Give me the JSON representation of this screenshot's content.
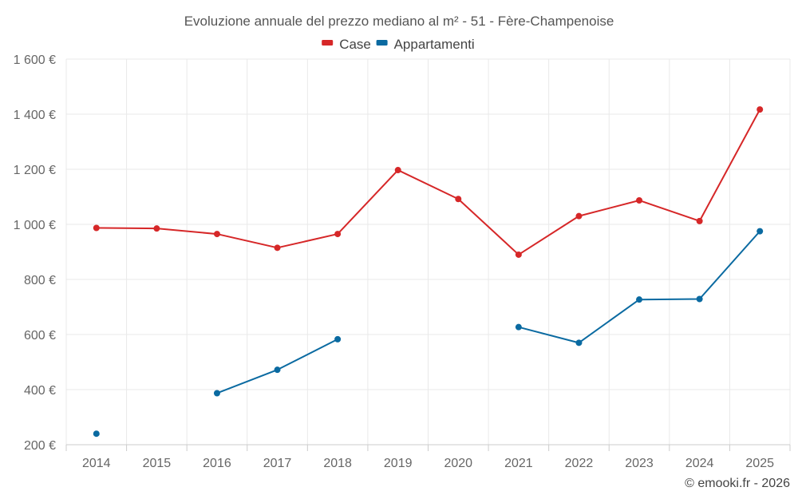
{
  "chart_data": {
    "type": "line",
    "title": "Evoluzione annuale del prezzo mediano al m² - 51 - Fère-Champenoise",
    "xlabel": "",
    "ylabel": "",
    "categories": [
      "2014",
      "2015",
      "2016",
      "2017",
      "2018",
      "2019",
      "2020",
      "2021",
      "2022",
      "2023",
      "2024",
      "2025"
    ],
    "ylim": [
      200,
      1600
    ],
    "yticks": [
      200,
      400,
      600,
      800,
      1000,
      1200,
      1400,
      1600
    ],
    "ytick_labels": [
      "200 €",
      "400 €",
      "600 €",
      "800 €",
      "1 000 €",
      "1 200 €",
      "1 400 €",
      "1 600 €"
    ],
    "grid": true,
    "legend_position": "top-center",
    "series": [
      {
        "name": "Case",
        "color": "#d62728",
        "values": [
          987,
          985,
          965,
          915,
          965,
          1197,
          1092,
          890,
          1030,
          1087,
          1012,
          1417
        ]
      },
      {
        "name": "Appartamenti",
        "color": "#0a6aa1",
        "values": [
          240,
          null,
          387,
          472,
          583,
          null,
          null,
          627,
          570,
          727,
          729,
          975
        ]
      }
    ]
  },
  "footer": {
    "copyright": "© emooki.fr - 2026"
  }
}
